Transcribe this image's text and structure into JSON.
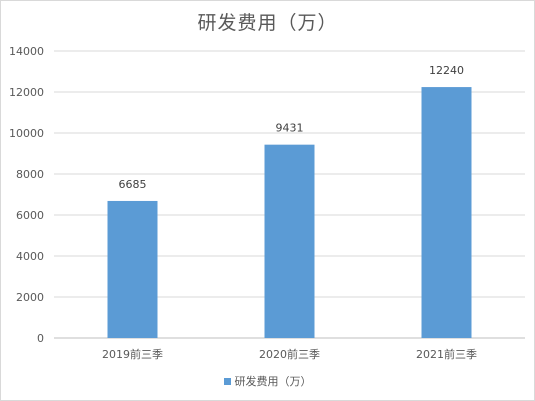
{
  "chart_data": {
    "type": "bar",
    "title": "研发费用（万）",
    "categories": [
      "2019前三季",
      "2020前三季",
      "2021前三季"
    ],
    "series": [
      {
        "name": "研发费用（万）",
        "values": [
          6685,
          9431,
          12240
        ]
      }
    ],
    "ylim": [
      0,
      14000
    ],
    "yticks": [
      0,
      2000,
      4000,
      6000,
      8000,
      10000,
      12000,
      14000
    ],
    "data_labels": [
      "6685",
      "9431",
      "12240"
    ],
    "grid": true,
    "legend_position": "bottom",
    "colors": {
      "bar": "#5b9bd5",
      "grid": "#d9d9d9",
      "axis": "#bfbfbf",
      "text": "#595959"
    }
  }
}
